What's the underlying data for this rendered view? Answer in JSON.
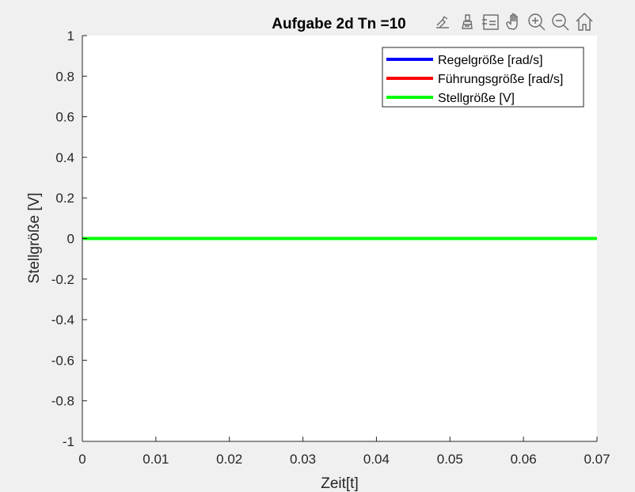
{
  "figure": {
    "background": "#f0f0f0",
    "axes_background": "#ffffff"
  },
  "toolbar": {
    "icons": [
      "export-icon",
      "brush-icon",
      "data-tips-icon",
      "pan-icon",
      "zoom-in-icon",
      "zoom-out-icon",
      "home-icon"
    ]
  },
  "chart_data": {
    "type": "line",
    "title": "Aufgabe 2d Tn =10",
    "xlabel": "Zeit[t]",
    "ylabel": "Stellgröße [V]",
    "xlim": [
      0,
      0.07
    ],
    "ylim": [
      -1,
      1
    ],
    "xticks": [
      "0",
      "0.01",
      "0.02",
      "0.03",
      "0.04",
      "0.05",
      "0.06",
      "0.07"
    ],
    "yticks": [
      "1",
      "0.8",
      "0.6",
      "0.4",
      "0.2",
      "0",
      "-0.2",
      "-0.4",
      "-0.6",
      "-0.8",
      "-1"
    ],
    "legend_position": "top-right",
    "grid": false,
    "series": [
      {
        "name": "Regelgröße [rad/s]",
        "color": "#0000ff",
        "x": [],
        "y": []
      },
      {
        "name": "Führungsgröße [rad/s]",
        "color": "#ff0000",
        "x": [],
        "y": []
      },
      {
        "name": "Stellgröße [V]",
        "color": "#00ff00",
        "x": [
          0,
          0.07
        ],
        "y": [
          0,
          0
        ]
      }
    ]
  }
}
